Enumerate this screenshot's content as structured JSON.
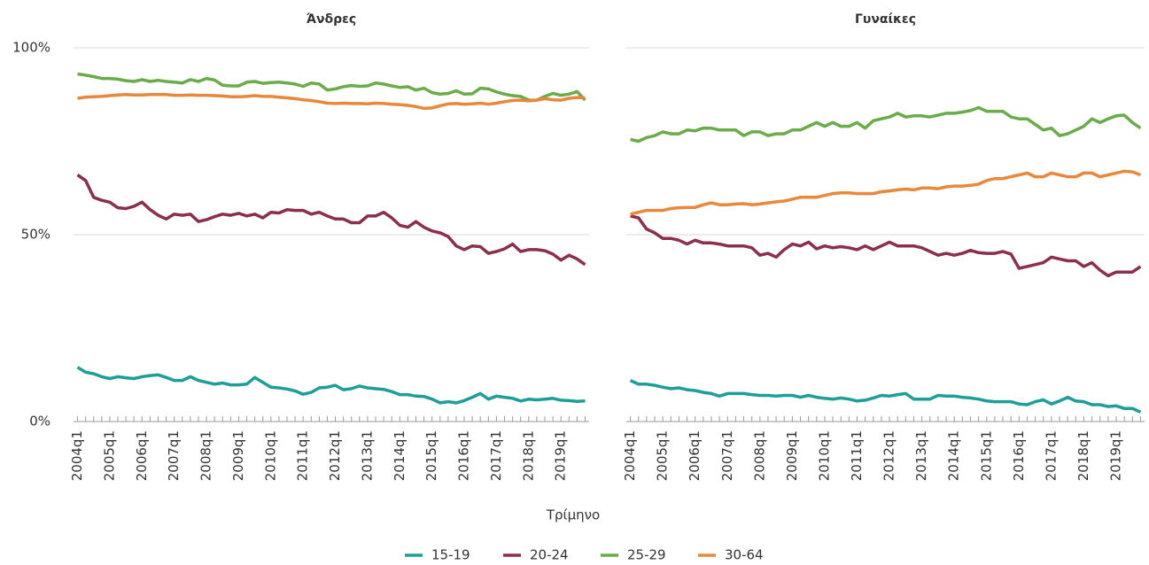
{
  "x_label": "Τρίμηνο",
  "chart_data": [
    {
      "type": "line",
      "title": "Άνδρες",
      "categories": [
        "2004q1",
        null,
        null,
        null,
        "2005q1",
        null,
        null,
        null,
        "2006q1",
        null,
        null,
        null,
        "2007q1",
        null,
        null,
        null,
        "2008q1",
        null,
        null,
        null,
        "2009q1",
        null,
        null,
        null,
        "2010q1",
        null,
        null,
        null,
        "2011q1",
        null,
        null,
        null,
        "2012q1",
        null,
        null,
        null,
        "2013q1",
        null,
        null,
        null,
        "2014q1",
        null,
        null,
        null,
        "2015q1",
        null,
        null,
        null,
        "2016q1",
        null,
        null,
        null,
        "2017q1",
        null,
        null,
        null,
        "2018q1",
        null,
        null,
        null,
        "2019q1",
        null,
        null,
        null
      ],
      "ylim": [
        0,
        100
      ],
      "yticks": [
        {
          "value": 0,
          "label": "0%"
        },
        {
          "value": 50,
          "label": "50%"
        },
        {
          "value": 100,
          "label": "100%"
        }
      ],
      "grid": true,
      "series": [
        {
          "name": "15-19",
          "color": "#1f9e99",
          "values": [
            14.5,
            13.2,
            12.8,
            12,
            11.5,
            12,
            11.7,
            11.5,
            12,
            12.3,
            12.5,
            11.8,
            11,
            11,
            12,
            11,
            10.5,
            10,
            10.3,
            9.8,
            9.8,
            10,
            11.8,
            10.5,
            9.2,
            9,
            8.7,
            8.2,
            7.3,
            7.8,
            9,
            9.2,
            9.7,
            8.5,
            8.8,
            9.5,
            9,
            8.8,
            8.6,
            8,
            7.2,
            7.2,
            6.8,
            6.7,
            6,
            5,
            5.3,
            5,
            5.6,
            6.5,
            7.5,
            6,
            6.8,
            6.5,
            6.2,
            5.5,
            6,
            5.8,
            6,
            6.2,
            5.7,
            5.6,
            5.4,
            5.5
          ]
        },
        {
          "name": "20-24",
          "color": "#8c2f4c",
          "values": [
            66,
            64.5,
            60,
            59.2,
            58.7,
            57.2,
            57,
            57.6,
            58.7,
            56.7,
            55.2,
            54.2,
            55.5,
            55.2,
            55.5,
            53.5,
            54,
            54.8,
            55.5,
            55.2,
            55.7,
            55,
            55.5,
            54.5,
            56,
            55.8,
            56.7,
            56.5,
            56.5,
            55.5,
            56,
            55,
            54.2,
            54.2,
            53.2,
            53.2,
            55,
            55,
            56,
            54.5,
            52.5,
            52,
            53.5,
            52,
            51,
            50.5,
            49.5,
            47,
            46,
            47,
            46.8,
            45,
            45.5,
            46.2,
            47.5,
            45.5,
            46,
            46,
            45.7,
            44.8,
            43.2,
            44.5,
            43.5,
            42
          ]
        },
        {
          "name": "25-29",
          "color": "#6aab4a",
          "values": [
            93,
            92.7,
            92.3,
            91.8,
            91.8,
            91.6,
            91.2,
            91,
            91.5,
            91,
            91.3,
            91,
            90.8,
            90.6,
            91.5,
            91,
            91.8,
            91.4,
            90,
            89.8,
            89.8,
            90.8,
            91,
            90.5,
            90.7,
            90.8,
            90.6,
            90.3,
            89.7,
            90.6,
            90.3,
            88.7,
            89,
            89.6,
            89.9,
            89.7,
            89.8,
            90.6,
            90.3,
            89.8,
            89.4,
            89.6,
            88.7,
            89.2,
            88,
            87.6,
            87.8,
            88.5,
            87.6,
            87.7,
            89.2,
            89,
            88.2,
            87.6,
            87.2,
            87,
            86,
            86,
            87,
            87.8,
            87.3,
            87.6,
            88.3,
            86
          ]
        },
        {
          "name": "30-64",
          "color": "#e8883c",
          "values": [
            86.5,
            86.8,
            86.9,
            87,
            87.2,
            87.4,
            87.5,
            87.4,
            87.4,
            87.5,
            87.5,
            87.5,
            87.3,
            87.3,
            87.4,
            87.3,
            87.3,
            87.2,
            87.1,
            86.9,
            86.9,
            87,
            87.2,
            87,
            87,
            86.8,
            86.6,
            86.4,
            86.1,
            85.9,
            85.6,
            85.2,
            85.1,
            85.2,
            85.1,
            85.1,
            85,
            85.2,
            85.1,
            84.9,
            84.8,
            84.6,
            84.3,
            83.8,
            83.9,
            84.5,
            85,
            85.1,
            84.9,
            85,
            85.2,
            84.9,
            85.2,
            85.6,
            85.9,
            86,
            85.8,
            86,
            86.4,
            86.1,
            86,
            86.5,
            86.7,
            86.6
          ]
        }
      ]
    },
    {
      "type": "line",
      "title": "Γυναίκες",
      "categories": [
        "2004q1",
        null,
        null,
        null,
        "2005q1",
        null,
        null,
        null,
        "2006q1",
        null,
        null,
        null,
        "2007q1",
        null,
        null,
        null,
        "2008q1",
        null,
        null,
        null,
        "2009q1",
        null,
        null,
        null,
        "2010q1",
        null,
        null,
        null,
        "2011q1",
        null,
        null,
        null,
        "2012q1",
        null,
        null,
        null,
        "2013q1",
        null,
        null,
        null,
        "2014q1",
        null,
        null,
        null,
        "2015q1",
        null,
        null,
        null,
        "2016q1",
        null,
        null,
        null,
        "2017q1",
        null,
        null,
        null,
        "2018q1",
        null,
        null,
        null,
        "2019q1",
        null,
        null,
        null
      ],
      "ylim": [
        0,
        100
      ],
      "yticks": [
        0,
        50,
        100
      ],
      "grid": true,
      "series": [
        {
          "color": "#1f9e99",
          "values": [
            11,
            10,
            10,
            9.7,
            9.2,
            8.8,
            9,
            8.5,
            8.3,
            7.8,
            7.5,
            6.8,
            7.5,
            7.5,
            7.5,
            7.2,
            7,
            7,
            6.8,
            7,
            7,
            6.5,
            7,
            6.5,
            6.2,
            6,
            6.3,
            6,
            5.5,
            5.7,
            6.3,
            7,
            6.8,
            7.2,
            7.5,
            6,
            6,
            6,
            7,
            6.8,
            6.8,
            6.5,
            6.3,
            6,
            5.5,
            5.3,
            5.3,
            5.3,
            4.7,
            4.5,
            5.3,
            5.8,
            4.7,
            5.5,
            6.5,
            5.5,
            5.3,
            4.5,
            4.5,
            4,
            4.2,
            3.5,
            3.5,
            2.5
          ]
        },
        {
          "color": "#8c2f4c",
          "values": [
            55,
            54.5,
            51.5,
            50.5,
            49,
            49,
            48.5,
            47.5,
            48.5,
            47.8,
            47.8,
            47.5,
            47,
            47,
            47,
            46.5,
            44.5,
            45,
            44,
            46,
            47.5,
            47,
            48,
            46.2,
            47,
            46.5,
            46.8,
            46.5,
            46,
            47,
            46,
            47,
            48,
            47,
            47,
            47,
            46.5,
            45.5,
            44.5,
            45,
            44.5,
            45,
            45.8,
            45.2,
            45,
            45,
            45.5,
            44.8,
            41,
            41.5,
            42,
            42.5,
            44,
            43.5,
            43,
            43,
            41.5,
            42.5,
            40.5,
            39,
            40,
            40,
            40,
            41.5
          ]
        },
        {
          "color": "#6aab4a",
          "values": [
            75.5,
            75,
            76,
            76.5,
            77.5,
            77,
            77,
            78,
            77.8,
            78.5,
            78.5,
            78,
            78,
            78,
            76.5,
            77.5,
            77.5,
            76.5,
            77,
            77,
            78,
            78,
            79,
            80,
            79,
            80,
            79,
            79,
            80,
            78.5,
            80.5,
            81,
            81.5,
            82.5,
            81.5,
            81.8,
            81.8,
            81.5,
            82,
            82.5,
            82.5,
            82.8,
            83.2,
            84,
            83,
            83,
            83,
            81.5,
            81,
            81,
            79.5,
            78,
            78.5,
            76.5,
            77,
            78,
            79,
            81,
            80,
            81,
            81.8,
            82,
            80,
            78.5
          ]
        },
        {
          "color": "#e8883c",
          "values": [
            55.5,
            56,
            56.5,
            56.5,
            56.5,
            57,
            57.2,
            57.3,
            57.3,
            58,
            58.5,
            58,
            58,
            58.2,
            58.3,
            58,
            58.2,
            58.5,
            58.8,
            59,
            59.5,
            60,
            60,
            60,
            60.5,
            61,
            61.2,
            61.2,
            61,
            61,
            61,
            61.5,
            61.7,
            62,
            62.2,
            62,
            62.5,
            62.5,
            62.3,
            62.8,
            63,
            63,
            63.2,
            63.5,
            64.5,
            65,
            65,
            65.5,
            66,
            66.5,
            65.5,
            65.5,
            66.5,
            66,
            65.5,
            65.5,
            66.5,
            66.5,
            65.5,
            66,
            66.5,
            67,
            66.8,
            66
          ]
        }
      ]
    }
  ]
}
